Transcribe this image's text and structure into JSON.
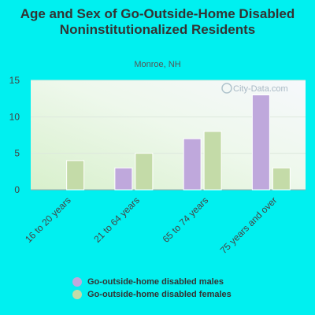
{
  "title": "Age and Sex of Go-Outside-Home Disabled Noninstitutionalized Residents",
  "subtitle": "Monroe, NH",
  "watermark": "City-Data.com",
  "colors": {
    "males": "#bfa8dc",
    "females": "#c4dba8",
    "background": "#00f0f0"
  },
  "chart_data": {
    "type": "bar",
    "categories": [
      "16 to 20 years",
      "21 to 64 years",
      "65 to 74 years",
      "75 years and over"
    ],
    "series": [
      {
        "name": "Go-outside-home disabled males",
        "values": [
          0,
          3,
          7,
          13
        ]
      },
      {
        "name": "Go-outside-home disabled females",
        "values": [
          4,
          5,
          8,
          3
        ]
      }
    ],
    "yticks": [
      0,
      5,
      10,
      15
    ],
    "ylim": [
      0,
      15
    ],
    "grid": true,
    "legend": "bottom"
  }
}
